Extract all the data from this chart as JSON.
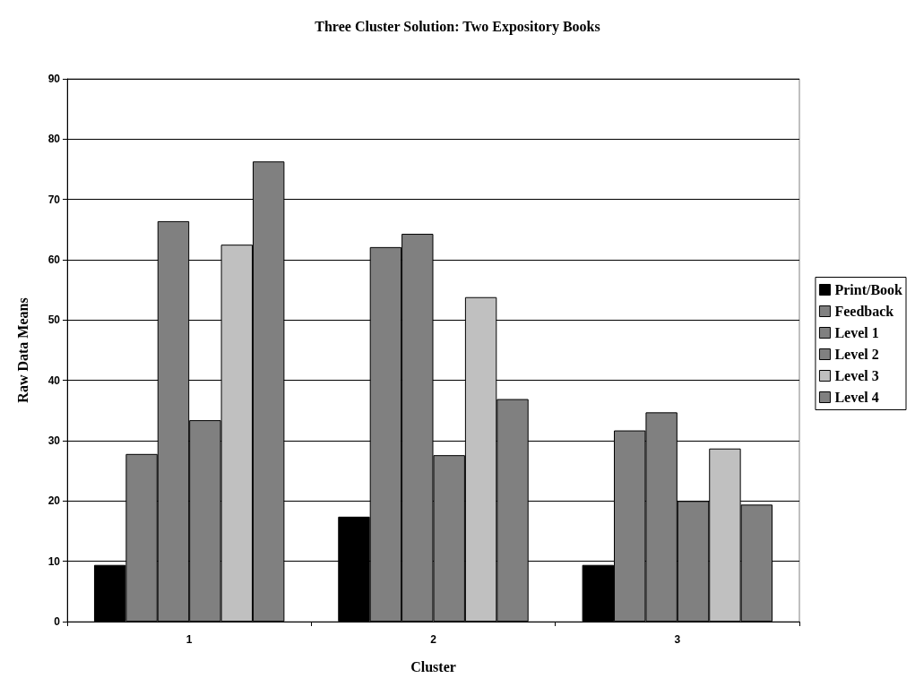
{
  "chart_data": {
    "type": "bar",
    "title": "Three Cluster Solution: Two Expository Books",
    "xlabel": "Cluster",
    "ylabel": "Raw Data Means",
    "categories": [
      "1",
      "2",
      "3"
    ],
    "series": [
      {
        "name": "Print/Book",
        "color": "#000000",
        "values": [
          9.4,
          17.4,
          9.4
        ]
      },
      {
        "name": "Feedback",
        "color": "#808080",
        "values": [
          27.8,
          62.1,
          31.7
        ]
      },
      {
        "name": "Level 1",
        "color": "#808080",
        "values": [
          66.4,
          64.3,
          34.7
        ]
      },
      {
        "name": "Level 2",
        "color": "#808080",
        "values": [
          33.4,
          27.6,
          20.0
        ]
      },
      {
        "name": "Level 3",
        "color": "#c0c0c0",
        "values": [
          62.5,
          53.8,
          28.7
        ]
      },
      {
        "name": "Level 4",
        "color": "#808080",
        "values": [
          76.3,
          36.9,
          19.4
        ]
      }
    ],
    "ylim": [
      0,
      90
    ],
    "yticks": [
      0,
      10,
      20,
      30,
      40,
      50,
      60,
      70,
      80,
      90
    ],
    "grid": "y",
    "legend": "right"
  }
}
